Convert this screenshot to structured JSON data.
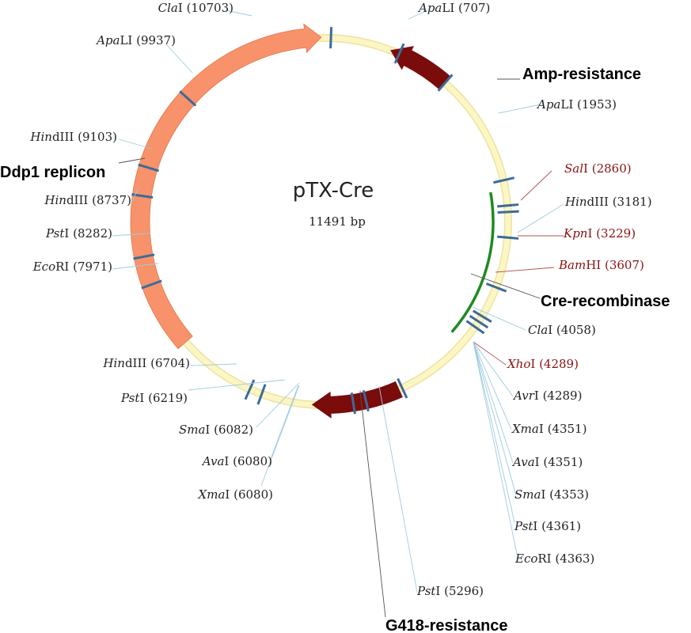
{
  "plasmid": {
    "name": "pTX-Cre",
    "size_label": "11491 bp"
  },
  "colors": {
    "backbone": "#fbf6c4",
    "backbone_edge": "#ede3a0",
    "site_line": "#3d6b99",
    "leader": "#9ecbe0",
    "leader_dark": "#555555",
    "highlight_text": "#8a1010",
    "normal_text": "#222222",
    "replicon": "#f7926a",
    "resistance": "#7a0c0c",
    "cre": "#1f8a22"
  },
  "sites": [
    {
      "enzyme": "Cla",
      "suffix": "I",
      "pos": "(10703)",
      "highlight": false
    },
    {
      "enzyme": "Apa",
      "suffix": "LI",
      "pos": "(707)",
      "highlight": false
    },
    {
      "enzyme": "Apa",
      "suffix": "LI",
      "pos": "(9937)",
      "highlight": false
    },
    {
      "enzyme": "Apa",
      "suffix": "LI",
      "pos": "(1953)",
      "highlight": false
    },
    {
      "enzyme": "Hin",
      "suffix": "dIII",
      "pos": "(9103)",
      "highlight": false
    },
    {
      "enzyme": "Sal",
      "suffix": "I",
      "pos": "(2860)",
      "highlight": true
    },
    {
      "enzyme": "Hin",
      "suffix": "dIII",
      "pos": "(3181)",
      "highlight": false
    },
    {
      "enzyme": "Hin",
      "suffix": "dIII",
      "pos": "(8737)",
      "highlight": false
    },
    {
      "enzyme": "Kpn",
      "suffix": "I",
      "pos": "(3229)",
      "highlight": true
    },
    {
      "enzyme": "Pst",
      "suffix": "I",
      "pos": "(8282)",
      "highlight": false
    },
    {
      "enzyme": "Bam",
      "suffix": "HI",
      "pos": "(3607)",
      "highlight": true
    },
    {
      "enzyme": "Eco",
      "suffix": "RI",
      "pos": "(7971)",
      "highlight": false
    },
    {
      "enzyme": "Cla",
      "suffix": "I",
      "pos": "(4058)",
      "highlight": false
    },
    {
      "enzyme": "Xho",
      "suffix": "I",
      "pos": "(4289)",
      "highlight": true
    },
    {
      "enzyme": "Hin",
      "suffix": "dIII",
      "pos": "(6704)",
      "highlight": false
    },
    {
      "enzyme": "Avr",
      "suffix": "I",
      "pos": "(4289)",
      "highlight": false
    },
    {
      "enzyme": "Pst",
      "suffix": "I",
      "pos": "(6219)",
      "highlight": false
    },
    {
      "enzyme": "Xma",
      "suffix": "I",
      "pos": "(4351)",
      "highlight": false
    },
    {
      "enzyme": "Sma",
      "suffix": "I",
      "pos": "(6082)",
      "highlight": false
    },
    {
      "enzyme": "Ava",
      "suffix": "I",
      "pos": "(4351)",
      "highlight": false
    },
    {
      "enzyme": "Ava",
      "suffix": "I",
      "pos": "(6080)",
      "highlight": false
    },
    {
      "enzyme": "Sma",
      "suffix": "I",
      "pos": "(4353)",
      "highlight": false
    },
    {
      "enzyme": "Xma",
      "suffix": "I",
      "pos": "(6080)",
      "highlight": false
    },
    {
      "enzyme": "Pst",
      "suffix": "I",
      "pos": "(4361)",
      "highlight": false
    },
    {
      "enzyme": "Eco",
      "suffix": "RI",
      "pos": "(4363)",
      "highlight": false
    },
    {
      "enzyme": "Pst",
      "suffix": "I",
      "pos": "(5296)",
      "highlight": false
    }
  ],
  "features": [
    {
      "label": "Amp-resistance"
    },
    {
      "label": "Ddp1 replicon"
    },
    {
      "label": "Cre-recombinase"
    },
    {
      "label": "G418-resistance"
    }
  ]
}
